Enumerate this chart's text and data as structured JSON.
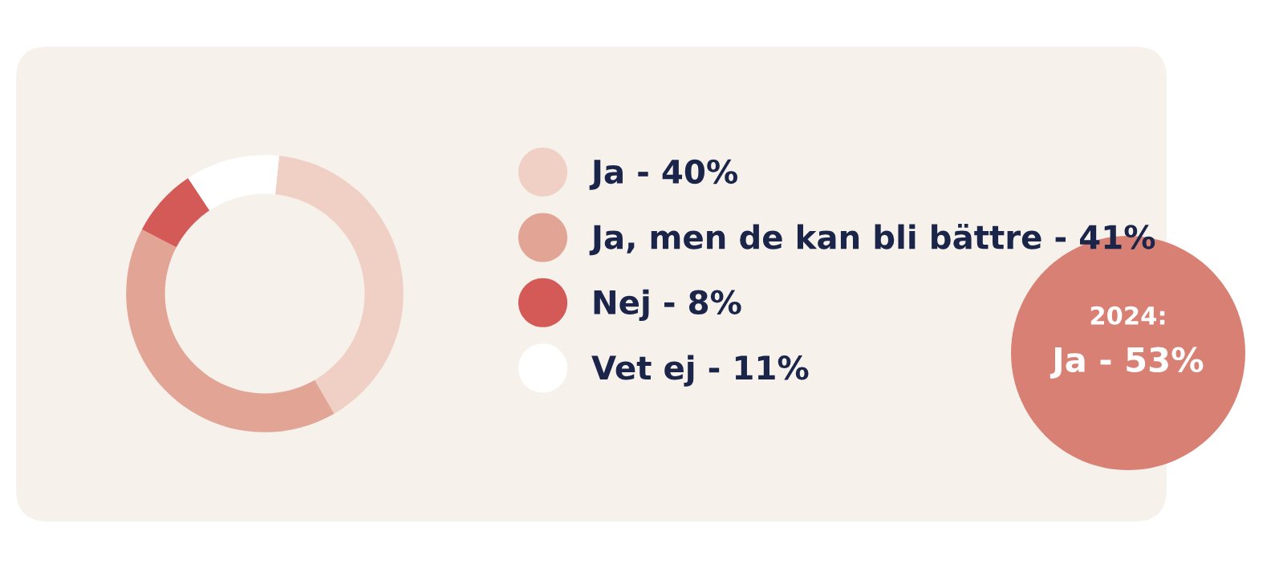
{
  "chart_data": {
    "type": "donut",
    "categories": [
      "Ja - 40%",
      "Ja, men de kan bli bättre - 41%",
      "Nej - 8%",
      "Vet ej - 11%"
    ],
    "values": [
      40,
      41,
      8,
      11
    ],
    "colors": [
      "#f0d0c4",
      "#e2a494",
      "#d45a58",
      "#ffffff"
    ],
    "legend": "right",
    "annotations": [
      "2024:",
      "Ja - 53%"
    ]
  }
}
